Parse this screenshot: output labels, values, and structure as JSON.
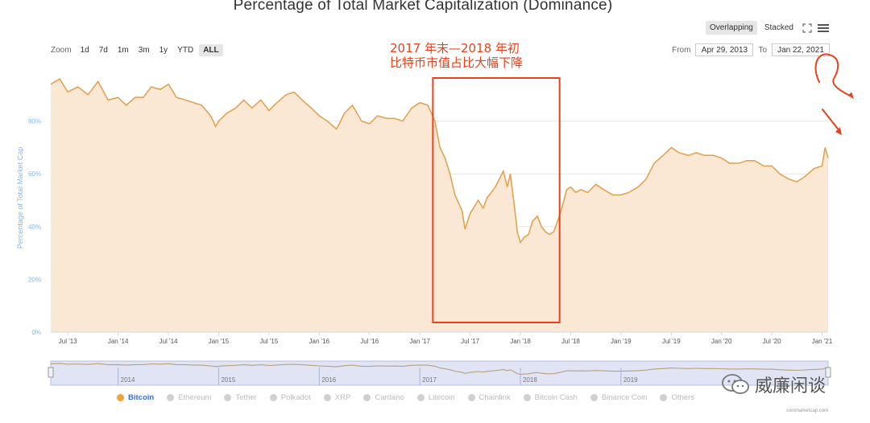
{
  "header": {
    "title": "Percentage of Total Market Capitalization (Dominance)"
  },
  "view_modes": {
    "overlapping": "Overlapping",
    "stacked": "Stacked"
  },
  "zoom": {
    "label": "Zoom",
    "buttons": [
      {
        "label": "1d",
        "active": false
      },
      {
        "label": "7d",
        "active": false
      },
      {
        "label": "1m",
        "active": false
      },
      {
        "label": "3m",
        "active": false
      },
      {
        "label": "1y",
        "active": false
      },
      {
        "label": "YTD",
        "active": false
      },
      {
        "label": "ALL",
        "active": true
      }
    ]
  },
  "range": {
    "from_label": "From",
    "from_value": "Apr 29, 2013",
    "to_label": "To",
    "to_value": "Jan 22, 2021"
  },
  "annotation": {
    "line1": "2017 年末—2018 年初",
    "line2": "比特币市值占比大幅下降",
    "color": "#e8411b"
  },
  "legend": [
    {
      "label": "Bitcoin",
      "active": true,
      "color": "#f7a035"
    },
    {
      "label": "Ethereum",
      "active": false,
      "color": "#cccccc"
    },
    {
      "label": "Tether",
      "active": false,
      "color": "#cccccc"
    },
    {
      "label": "Polkadot",
      "active": false,
      "color": "#cccccc"
    },
    {
      "label": "XRP",
      "active": false,
      "color": "#cccccc"
    },
    {
      "label": "Cardano",
      "active": false,
      "color": "#cccccc"
    },
    {
      "label": "Litecoin",
      "active": false,
      "color": "#cccccc"
    },
    {
      "label": "Chainlink",
      "active": false,
      "color": "#cccccc"
    },
    {
      "label": "Bitcoin Cash",
      "active": false,
      "color": "#cccccc"
    },
    {
      "label": "Binance Coin",
      "active": false,
      "color": "#cccccc"
    },
    {
      "label": "Others",
      "active": false,
      "color": "#cccccc"
    }
  ],
  "watermark": {
    "text": "威廉闲谈"
  },
  "credit": "coinmarketcap.com",
  "colors": {
    "series_line": "#e0a352",
    "series_fill": "#fbe8d4",
    "navigator_fill": "#e0e4f5",
    "axis_label": "#8ab4e8"
  },
  "chart_data": {
    "type": "area",
    "title": "Percentage of Total Market Capitalization (Dominance)",
    "xlabel": "",
    "ylabel": "Percentage of Total Market Cap",
    "ylim": [
      0,
      100
    ],
    "y_ticks": [
      "0%",
      "20%",
      "40%",
      "60%",
      "80%"
    ],
    "y_tick_values": [
      0,
      20,
      40,
      60,
      80
    ],
    "x_range": [
      2013.33,
      2021.06
    ],
    "x_tick_labels": [
      "Jul '13",
      "Jan '14",
      "Jul '14",
      "Jan '15",
      "Jul '15",
      "Jan '16",
      "Jul '16",
      "Jan '17",
      "Jul '17",
      "Jan '18",
      "Jul '18",
      "Jan '19",
      "Jul '19",
      "Jan '20",
      "Jul '20",
      "Jan '21"
    ],
    "x_tick_values": [
      2013.5,
      2014.0,
      2014.5,
      2015.0,
      2015.5,
      2016.0,
      2016.5,
      2017.0,
      2017.5,
      2018.0,
      2018.5,
      2019.0,
      2019.5,
      2020.0,
      2020.5,
      2021.0
    ],
    "navigator_labels": [
      "2014",
      "2015",
      "2016",
      "2017",
      "2018",
      "2019"
    ],
    "navigator_values": [
      2014.0,
      2015.0,
      2016.0,
      2017.0,
      2018.0,
      2019.0
    ],
    "grid": true,
    "highlight_range": [
      2017.13,
      2018.39
    ],
    "series": [
      {
        "name": "Bitcoin",
        "x": [
          2013.33,
          2013.42,
          2013.5,
          2013.6,
          2013.7,
          2013.8,
          2013.9,
          2014.0,
          2014.08,
          2014.17,
          2014.25,
          2014.33,
          2014.42,
          2014.5,
          2014.58,
          2014.67,
          2014.75,
          2014.83,
          2014.92,
          2014.97,
          2015.0,
          2015.08,
          2015.17,
          2015.25,
          2015.33,
          2015.42,
          2015.5,
          2015.58,
          2015.67,
          2015.75,
          2015.83,
          2015.92,
          2016.0,
          2016.08,
          2016.17,
          2016.2,
          2016.25,
          2016.33,
          2016.42,
          2016.5,
          2016.58,
          2016.67,
          2016.75,
          2016.83,
          2016.92,
          2017.0,
          2017.08,
          2017.15,
          2017.2,
          2017.25,
          2017.3,
          2017.35,
          2017.42,
          2017.45,
          2017.5,
          2017.55,
          2017.58,
          2017.63,
          2017.67,
          2017.71,
          2017.75,
          2017.79,
          2017.83,
          2017.87,
          2017.9,
          2017.92,
          2017.94,
          2017.97,
          2018.0,
          2018.04,
          2018.08,
          2018.12,
          2018.17,
          2018.21,
          2018.25,
          2018.29,
          2018.33,
          2018.37,
          2018.42,
          2018.46,
          2018.5,
          2018.55,
          2018.6,
          2018.67,
          2018.75,
          2018.83,
          2018.92,
          2019.0,
          2019.08,
          2019.17,
          2019.25,
          2019.33,
          2019.42,
          2019.5,
          2019.58,
          2019.67,
          2019.75,
          2019.83,
          2019.92,
          2020.0,
          2020.08,
          2020.17,
          2020.25,
          2020.33,
          2020.42,
          2020.5,
          2020.58,
          2020.67,
          2020.75,
          2020.83,
          2020.92,
          2021.0,
          2021.03,
          2021.06
        ],
        "values": [
          94,
          96,
          91,
          93,
          90,
          95,
          88,
          89,
          86,
          89,
          89,
          93,
          92,
          94,
          89,
          88,
          87,
          86,
          82,
          78,
          80,
          83,
          85,
          88,
          85,
          88,
          84,
          87,
          90,
          91,
          88,
          85,
          82,
          80,
          77,
          79,
          83,
          86,
          80,
          79,
          82,
          81,
          81,
          80,
          85,
          87,
          86,
          80,
          70,
          66,
          60,
          52,
          46,
          39,
          45,
          48,
          50,
          47,
          51,
          53,
          55,
          58,
          61,
          55,
          60,
          54,
          48,
          38,
          34,
          36,
          37,
          42,
          44,
          40,
          38,
          37,
          38,
          42,
          48,
          54,
          55,
          53,
          54,
          53,
          56,
          54,
          52,
          52,
          53,
          55,
          58,
          64,
          67,
          70,
          68,
          67,
          68,
          67,
          67,
          66,
          64,
          64,
          65,
          65,
          63,
          63,
          60,
          58,
          57,
          59,
          62,
          63,
          70,
          66
        ]
      }
    ]
  }
}
